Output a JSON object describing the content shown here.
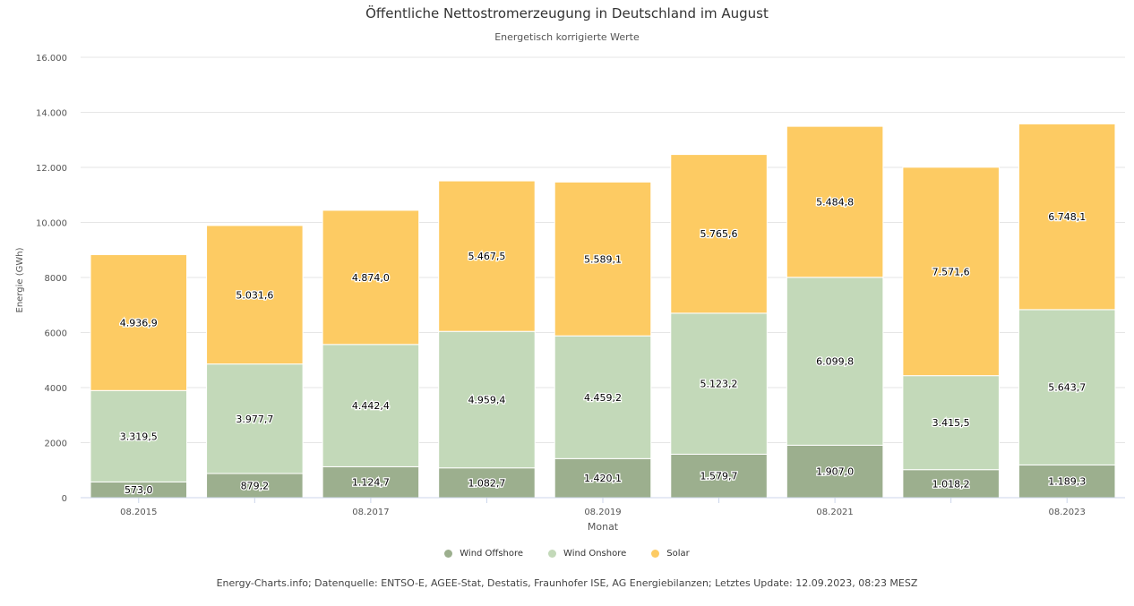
{
  "title": "Öffentliche Nettostromerzeugung in Deutschland im August",
  "subtitle": "Energetisch korrigierte Werte",
  "credits": "Energy-Charts.info; Datenquelle: ENTSO-E, AGEE-Stat, Destatis, Fraunhofer ISE, AG Energiebilanzen; Letztes Update: 12.09.2023, 08:23 MESZ",
  "colors": {
    "wind_offshore": "#9caf8e",
    "wind_onshore": "#c3d9b9",
    "solar": "#fdcb63",
    "grid": "#e6e6e6"
  },
  "chart_data": {
    "type": "bar",
    "stacked": true,
    "title": "Öffentliche Nettostromerzeugung in Deutschland im August",
    "subtitle": "Energetisch korrigierte Werte",
    "xlabel": "Monat",
    "ylabel": "Energie (GWh)",
    "ylim": [
      0,
      16000
    ],
    "yticks": [
      0,
      2000,
      4000,
      6000,
      8000,
      10000,
      12000,
      14000,
      16000
    ],
    "ytick_labels": [
      "0",
      "2000",
      "4000",
      "6000",
      "8000",
      "10.000",
      "12.000",
      "14.000",
      "16.000"
    ],
    "categories": [
      "08.2015",
      "08.2016",
      "08.2017",
      "08.2018",
      "08.2019",
      "08.2020",
      "08.2021",
      "08.2022",
      "08.2023"
    ],
    "xtick_labels": [
      "08.2015",
      "",
      "08.2017",
      "",
      "08.2019",
      "",
      "08.2021",
      "",
      "08.2023"
    ],
    "series": [
      {
        "name": "Wind Offshore",
        "color": "#9caf8e",
        "values": [
          573.0,
          879.2,
          1124.7,
          1082.7,
          1420.1,
          1579.7,
          1907.0,
          1018.2,
          1189.3
        ],
        "labels": [
          "573,0",
          "879,2",
          "1.124,7",
          "1.082,7",
          "1.420,1",
          "1.579,7",
          "1.907,0",
          "1.018,2",
          "1.189,3"
        ]
      },
      {
        "name": "Wind Onshore",
        "color": "#c3d9b9",
        "values": [
          3319.5,
          3977.7,
          4442.4,
          4959.4,
          4459.2,
          5123.2,
          6099.8,
          3415.5,
          5643.7
        ],
        "labels": [
          "3.319,5",
          "3.977,7",
          "4.442,4",
          "4.959,4",
          "4.459,2",
          "5.123,2",
          "6.099,8",
          "3.415,5",
          "5.643,7"
        ]
      },
      {
        "name": "Solar",
        "color": "#fdcb63",
        "values": [
          4936.9,
          5031.6,
          4874.0,
          5467.5,
          5589.1,
          5765.6,
          5484.8,
          7571.6,
          6748.1
        ],
        "labels": [
          "4.936,9",
          "5.031,6",
          "4.874,0",
          "5.467,5",
          "5.589,1",
          "5.765,6",
          "5.484,8",
          "7.571,6",
          "6.748,1"
        ]
      }
    ],
    "grid": true,
    "legend_position": "bottom"
  }
}
